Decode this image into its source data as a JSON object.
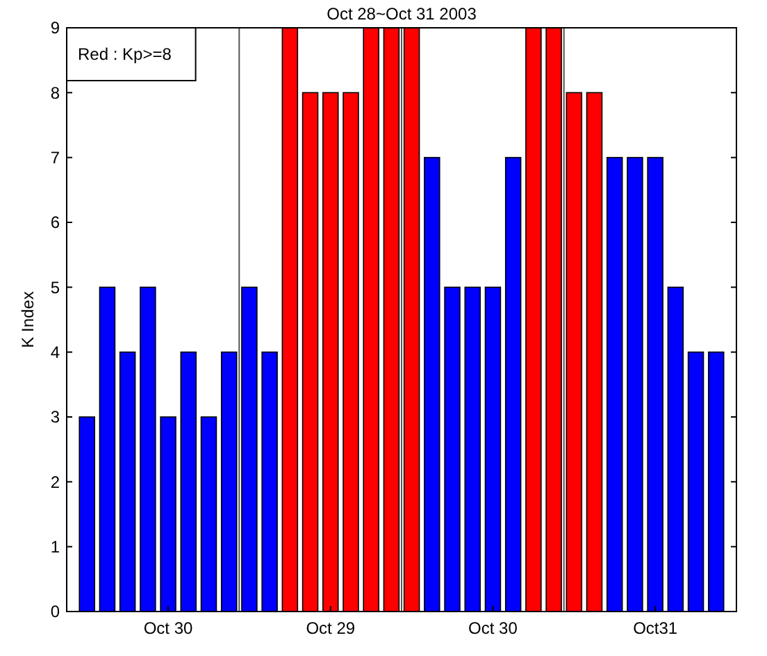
{
  "chart_data": {
    "type": "bar",
    "title": "Oct 28~Oct 31 2003",
    "ylabel": "K Index",
    "categories": [
      null,
      null,
      null,
      null,
      "Oct 30",
      null,
      null,
      null,
      null,
      null,
      null,
      null,
      "Oct 29",
      null,
      null,
      null,
      null,
      null,
      null,
      null,
      "Oct 30",
      null,
      null,
      null,
      null,
      null,
      null,
      null,
      "Oct31",
      null,
      null,
      null
    ],
    "values": [
      3,
      5,
      4,
      5,
      3,
      4,
      3,
      4,
      5,
      4,
      9,
      8,
      8,
      8,
      9,
      9,
      9,
      7,
      5,
      5,
      5,
      7,
      9,
      9,
      8,
      8,
      7,
      7,
      7,
      5,
      4,
      4
    ],
    "colors": [
      "#0000ff",
      "#0000ff",
      "#0000ff",
      "#0000ff",
      "#0000ff",
      "#0000ff",
      "#0000ff",
      "#0000ff",
      "#0000ff",
      "#0000ff",
      "#ff0000",
      "#ff0000",
      "#ff0000",
      "#ff0000",
      "#ff0000",
      "#ff0000",
      "#ff0000",
      "#0000ff",
      "#0000ff",
      "#0000ff",
      "#0000ff",
      "#0000ff",
      "#ff0000",
      "#ff0000",
      "#ff0000",
      "#ff0000",
      "#0000ff",
      "#0000ff",
      "#0000ff",
      "#0000ff",
      "#0000ff",
      "#0000ff"
    ],
    "ylim": [
      0,
      9
    ],
    "yticks": [
      0,
      1,
      2,
      3,
      4,
      5,
      6,
      7,
      8,
      9
    ],
    "annotations": [
      "Red : Kp>=8"
    ],
    "grid": false
  }
}
